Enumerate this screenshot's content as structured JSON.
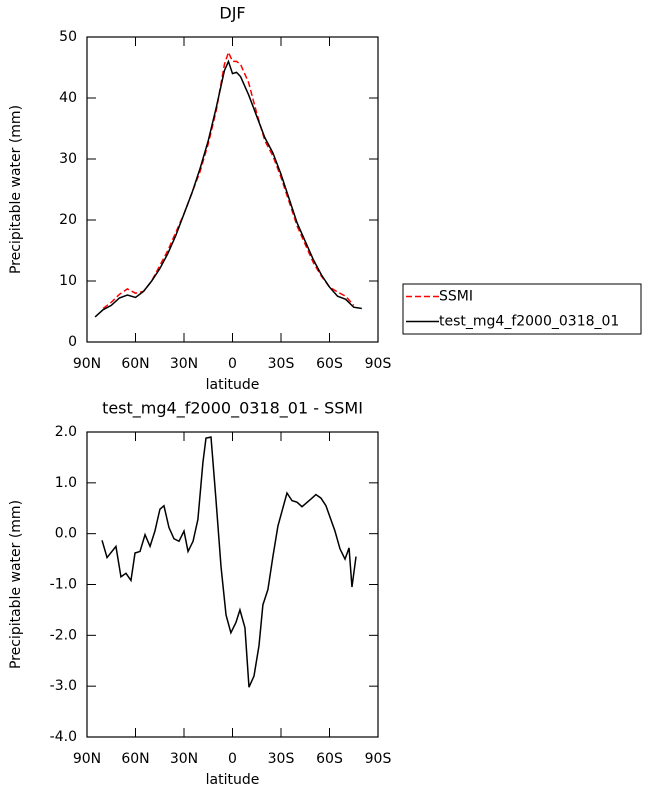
{
  "chart_data": [
    {
      "type": "line",
      "title": "DJF",
      "xlabel": "latitude",
      "ylabel": "Precipitable water (mm)",
      "x": [
        85,
        80,
        75,
        70,
        65,
        60,
        55,
        50,
        45,
        40,
        35,
        30,
        25,
        20,
        15,
        10,
        5,
        2.5,
        0,
        -2.5,
        -5,
        -10,
        -15,
        -20,
        -25,
        -30,
        -35,
        -40,
        -45,
        -50,
        -55,
        -60,
        -65,
        -70,
        -75,
        -80
      ],
      "series": [
        {
          "name": "SSMI",
          "color": "#ff0000",
          "linestyle": "dashed",
          "values": [
            null,
            5.5,
            6.5,
            7.8,
            8.7,
            8.0,
            8.3,
            10.0,
            12.5,
            15.0,
            18.0,
            21.0,
            24.5,
            28.0,
            32.5,
            38.0,
            45.5,
            47.5,
            46.0,
            46.0,
            45.5,
            42.5,
            37.5,
            33.0,
            30.5,
            27.0,
            23.0,
            19.0,
            16.0,
            13.0,
            10.8,
            9.0,
            8.2,
            7.5,
            6.0,
            null
          ]
        },
        {
          "name": "test_mg4_f2000_0318_01",
          "color": "#000000",
          "linestyle": "solid",
          "values": [
            4.1,
            5.3,
            6.0,
            7.2,
            7.7,
            7.3,
            8.3,
            10.0,
            12.0,
            14.5,
            17.5,
            21.0,
            24.5,
            28.5,
            33.0,
            38.5,
            44.5,
            46.0,
            44.0,
            44.2,
            43.5,
            40.5,
            37.0,
            33.5,
            31.0,
            27.5,
            23.5,
            19.5,
            16.5,
            13.5,
            11.0,
            9.0,
            7.5,
            7.0,
            5.7,
            5.5
          ]
        }
      ],
      "xlim": [
        90,
        -90
      ],
      "xticks": [
        {
          "value": 90,
          "label": "90N"
        },
        {
          "value": 60,
          "label": "60N"
        },
        {
          "value": 30,
          "label": "30N"
        },
        0,
        {
          "value": -30,
          "label": "30S"
        },
        {
          "value": -60,
          "label": "60S"
        },
        {
          "value": -90,
          "label": "90S"
        }
      ],
      "ylim": [
        0,
        50
      ],
      "yticks": [
        0,
        10,
        20,
        30,
        40,
        50
      ],
      "grid": false,
      "legend": "right"
    },
    {
      "type": "line",
      "title": "test_mg4_f2000_0318_01 - SSMI",
      "xlabel": "latitude",
      "ylabel": "Precipitable water (mm)",
      "x": [
        80.7,
        77.6,
        72.1,
        69,
        65.9,
        62.8,
        60.3,
        57.2,
        54.1,
        51,
        48,
        44.9,
        42.4,
        39.3,
        36.2,
        33.1,
        30,
        27.5,
        24.4,
        21.4,
        18.3,
        16.4,
        13.3,
        10.3,
        7.1,
        4,
        1,
        -2.1,
        -4.6,
        -7.7,
        -10.2,
        -13.3,
        -16.4,
        -18.8,
        -21.9,
        -25,
        -28.1,
        -33.7,
        -36.8,
        -39.9,
        -43,
        -48.5,
        -51.6,
        -54.7,
        -57.8,
        -63.4,
        -66.5,
        -69.6,
        -72.1,
        -73.9,
        -76.4
      ],
      "values": [
        -0.13,
        -0.47,
        -0.25,
        -0.85,
        -0.78,
        -0.92,
        -0.38,
        -0.35,
        -0.02,
        -0.25,
        0.05,
        0.48,
        0.55,
        0.12,
        -0.1,
        -0.15,
        0.05,
        -0.35,
        -0.15,
        0.28,
        1.4,
        1.88,
        1.9,
        0.7,
        -0.65,
        -1.6,
        -1.95,
        -1.75,
        -1.5,
        -1.85,
        -3.02,
        -2.8,
        -2.2,
        -1.4,
        -1.1,
        -0.45,
        0.15,
        0.8,
        0.65,
        0.62,
        0.53,
        0.68,
        0.77,
        0.7,
        0.55,
        0.05,
        -0.3,
        -0.5,
        -0.28,
        -1.05,
        -0.45
      ],
      "color": "#000000",
      "xlim": [
        90,
        -90
      ],
      "xticks": [
        {
          "value": 90,
          "label": "90N"
        },
        {
          "value": 60,
          "label": "60N"
        },
        {
          "value": 30,
          "label": "30N"
        },
        0,
        {
          "value": -30,
          "label": "30S"
        },
        {
          "value": -60,
          "label": "60S"
        },
        {
          "value": -90,
          "label": "90S"
        }
      ],
      "ylim": [
        -4,
        2
      ],
      "yticks": [
        {
          "value": -4,
          "label": "-4.0"
        },
        {
          "value": -3,
          "label": "-3.0"
        },
        {
          "value": -2,
          "label": "-2.0"
        },
        {
          "value": -1,
          "label": "-1.0"
        },
        {
          "value": 0,
          "label": "0.0"
        },
        {
          "value": 1,
          "label": "1.0"
        },
        {
          "value": 2,
          "label": "2.0"
        }
      ],
      "grid": false
    }
  ]
}
